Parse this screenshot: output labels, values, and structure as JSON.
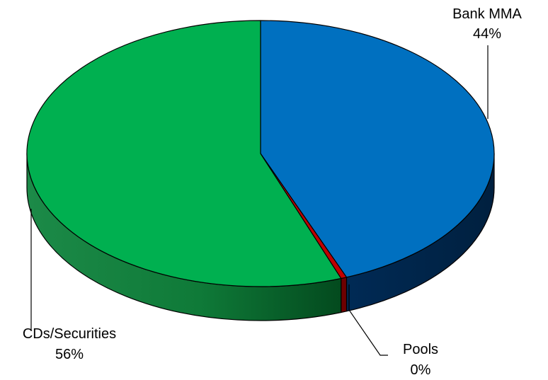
{
  "chart_data": {
    "type": "pie",
    "style": "3d",
    "title": "",
    "slices": [
      {
        "label": "Bank MMA",
        "value_label": "44%",
        "value": 44.0,
        "color": "#0070C0",
        "side_color": "#00274D"
      },
      {
        "label": "Pools",
        "value_label": "0%",
        "value": 0.4,
        "color": "#C00000",
        "side_color": "#6E0000"
      },
      {
        "label": "CDs/Securities",
        "value_label": "56%",
        "value": 55.6,
        "color": "#00B050",
        "side_color": "#0E7A3A"
      }
    ],
    "legend": "none"
  }
}
